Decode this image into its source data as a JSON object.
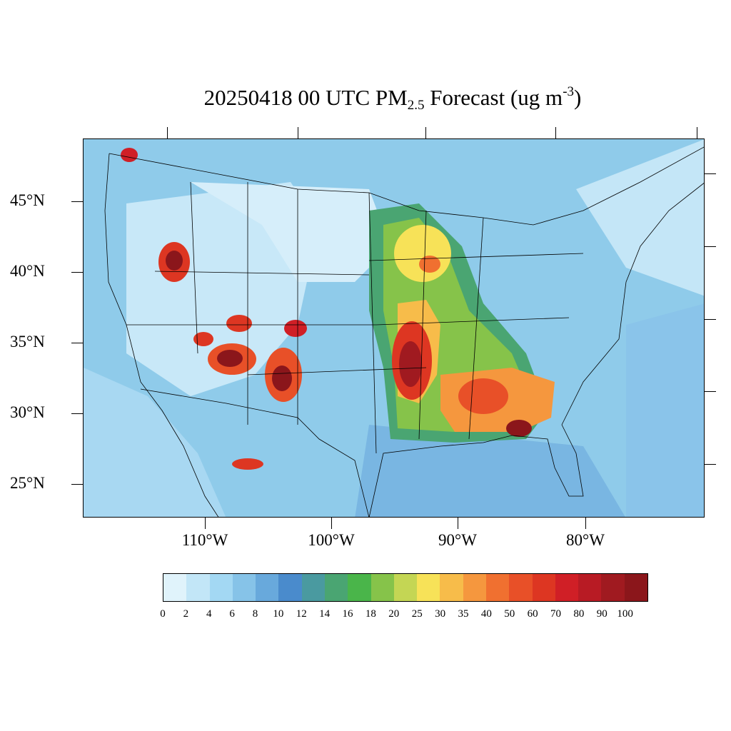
{
  "title": {
    "date_time": "20250418 00 UTC",
    "pm": "PM",
    "pm_sub": "2.5",
    "rest": "Forecast (ug m",
    "unit_sup": "-3",
    "close": ")"
  },
  "map": {
    "region": "Contiguous United States",
    "variable": "PM2.5",
    "background_level_color": "#8fcbea",
    "lat_labels": [
      "45°N",
      "40°N",
      "35°N",
      "30°N",
      "25°N"
    ],
    "lon_labels": [
      "110°W",
      "100°W",
      "90°W",
      "80°W"
    ],
    "hotspots": [
      {
        "area": "northern Utah / southern Idaho",
        "level": "80-100"
      },
      {
        "area": "central Arizona",
        "level": "80-100"
      },
      {
        "area": "northern New Mexico",
        "level": "80-100"
      },
      {
        "area": "southern New Mexico",
        "level": "80-100"
      },
      {
        "area": "western Arkansas / eastern Oklahoma",
        "level": "80-100"
      },
      {
        "area": "Alabama / Georgia",
        "level": "60-90"
      },
      {
        "area": "Florida panhandle",
        "level": "80-100"
      },
      {
        "area": "Wisconsin / Minnesota",
        "level": "30-60"
      },
      {
        "area": "northern Washington",
        "level": "60-100"
      },
      {
        "area": "northern Mexico (Sinaloa/Sonora)",
        "level": "70-90"
      }
    ]
  },
  "colorbar": {
    "labels": [
      "0",
      "2",
      "4",
      "6",
      "8",
      "10",
      "12",
      "14",
      "16",
      "18",
      "20",
      "25",
      "30",
      "35",
      "40",
      "50",
      "60",
      "70",
      "80",
      "90",
      "100"
    ],
    "colors": [
      "#e0f3fb",
      "#c2e6f7",
      "#a3d8f3",
      "#86c3e8",
      "#68a9dc",
      "#4a8bcc",
      "#4a9aa0",
      "#4aa572",
      "#4ab54a",
      "#86c34a",
      "#c4d654",
      "#f7e258",
      "#f7bc4a",
      "#f5973e",
      "#f07030",
      "#e85028",
      "#dd3622",
      "#d01f26",
      "#b81b24",
      "#a01a20",
      "#8b161b"
    ]
  }
}
